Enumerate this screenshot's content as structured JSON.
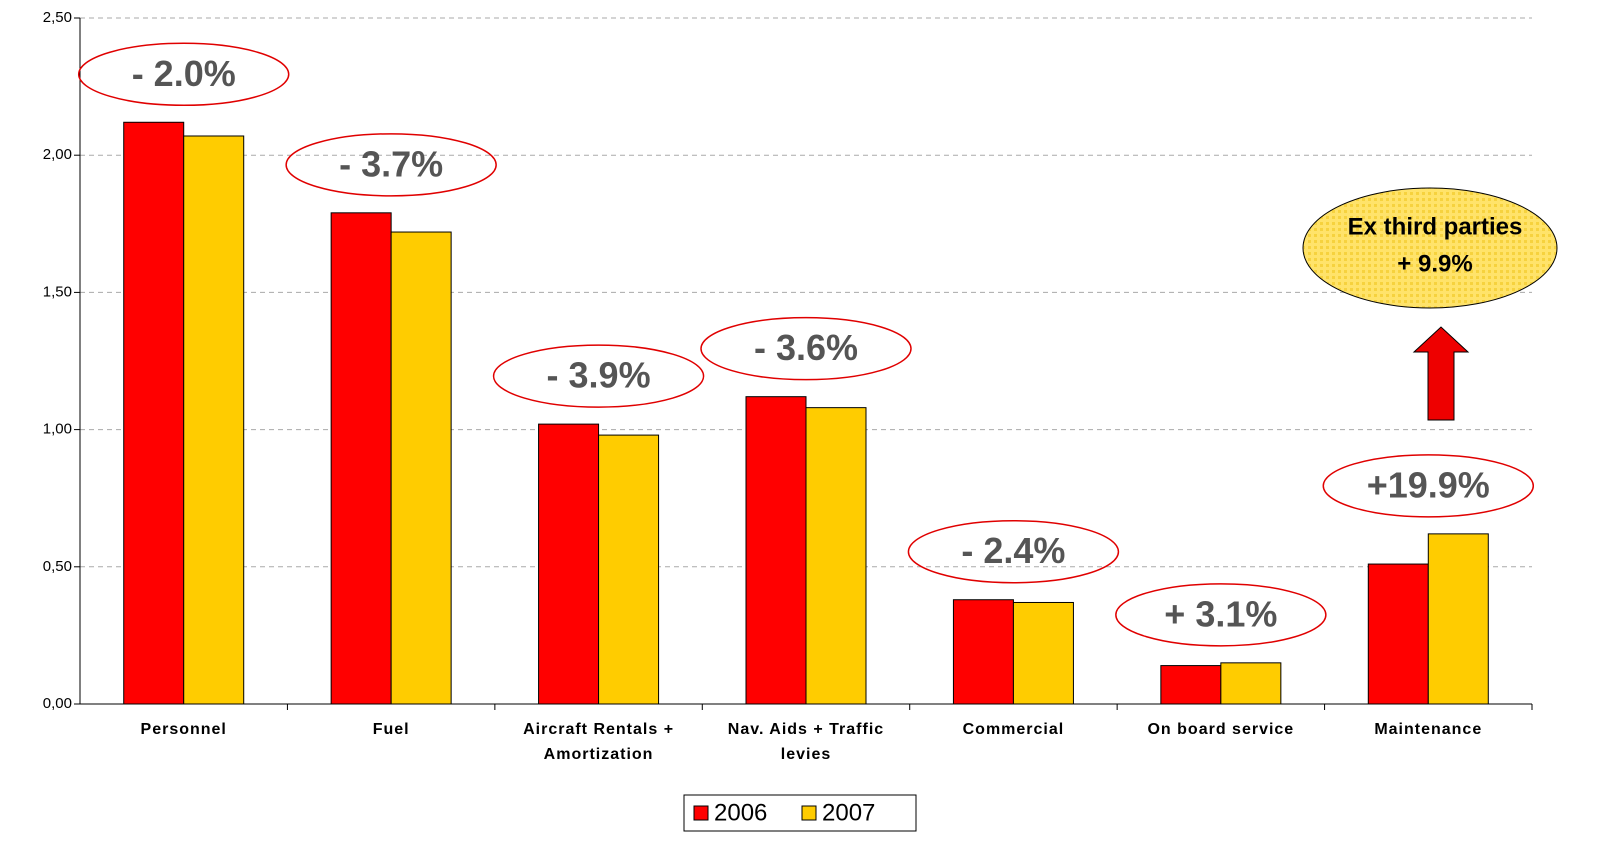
{
  "chart_data": {
    "type": "bar",
    "categories": [
      "Personnel",
      "Fuel",
      "Aircraft Rentals + Amortization",
      "Nav. Aids + Traffic levies",
      "Commercial",
      "On board service",
      "Maintenance"
    ],
    "series": [
      {
        "name": "2006",
        "color": "#ff0000",
        "values": [
          2.12,
          1.79,
          1.02,
          1.12,
          0.38,
          0.14,
          0.51
        ]
      },
      {
        "name": "2007",
        "color": "#ffcc00",
        "values": [
          2.07,
          1.72,
          0.98,
          1.08,
          0.37,
          0.15,
          0.62
        ]
      }
    ],
    "annotations": [
      "- 2.0%",
      "- 3.7%",
      "- 3.9%",
      "- 3.6%",
      "- 2.4%",
      "+ 3.1%",
      "+19.9%"
    ],
    "callout": [
      "Ex third parties",
      "+ 9.9%"
    ],
    "ylim": [
      0,
      2.5
    ],
    "yticks": [
      {
        "value": 0,
        "label": "0,00"
      },
      {
        "value": 0.5,
        "label": "0,50"
      },
      {
        "value": 1,
        "label": "1,00"
      },
      {
        "value": 1.5,
        "label": "1,50"
      },
      {
        "value": 2,
        "label": "2,00"
      },
      {
        "value": 2.5,
        "label": "2,50"
      }
    ],
    "grid": true
  }
}
